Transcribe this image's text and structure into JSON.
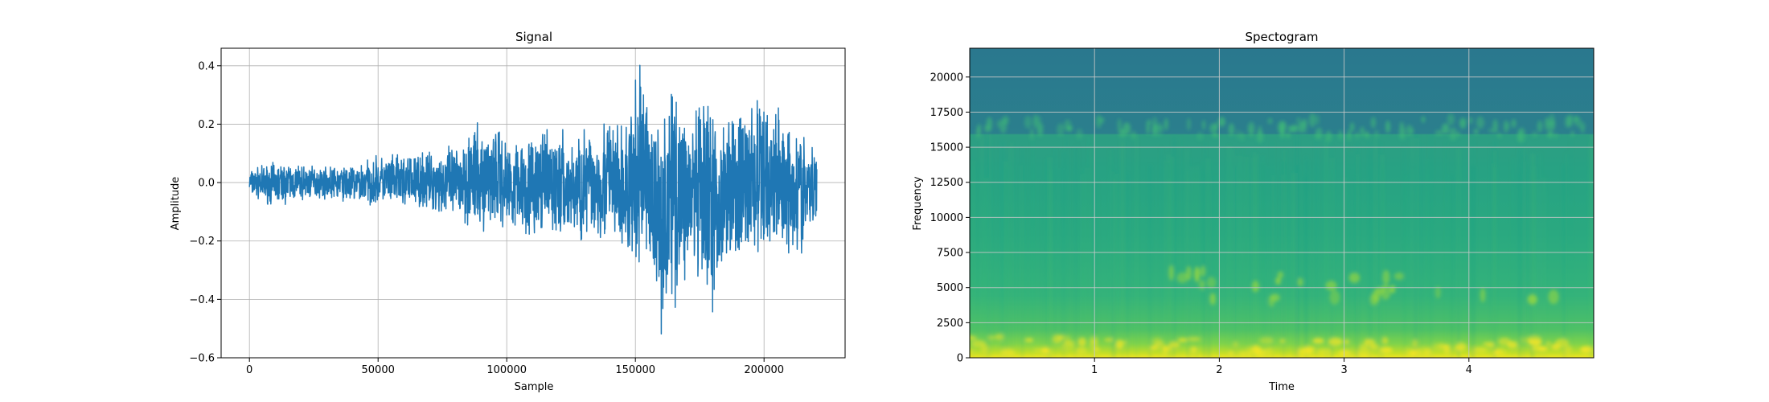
{
  "chart_data": [
    {
      "type": "line",
      "title": "Signal",
      "xlabel": "Sample",
      "ylabel": "Amplitude",
      "xlim": [
        -11000,
        231500
      ],
      "ylim": [
        -0.6,
        0.46
      ],
      "grid": true,
      "x_ticks": [
        0,
        50000,
        100000,
        150000,
        200000
      ],
      "x_tick_labels": [
        "0",
        "50000",
        "100000",
        "150000",
        "200000"
      ],
      "y_ticks": [
        -0.6,
        -0.4,
        -0.2,
        0.0,
        0.2,
        0.4
      ],
      "y_tick_labels": [
        "−0.6",
        "−0.4",
        "−0.2",
        "0.0",
        "0.2",
        "0.4"
      ],
      "color": "#1f77b4",
      "series": [
        {
          "x_range": [
            0,
            220500
          ],
          "envelope": {
            "x": [
              0,
              10000,
              20000,
              30000,
              40000,
              50000,
              60000,
              70000,
              80000,
              85000,
              90000,
              95000,
              100000,
              105000,
              110000,
              115000,
              120000,
              125000,
              130000,
              135000,
              140000,
              145000,
              148000,
              150000,
              152000,
              155000,
              158000,
              160000,
              163000,
              165000,
              170000,
              175000,
              180000,
              183000,
              185000,
              190000,
              195000,
              200000,
              205000,
              210000,
              215000,
              220500
            ],
            "upper": [
              0.05,
              0.08,
              0.07,
              0.06,
              0.07,
              0.1,
              0.11,
              0.12,
              0.14,
              0.23,
              0.2,
              0.24,
              0.17,
              0.19,
              0.19,
              0.19,
              0.21,
              0.16,
              0.23,
              0.21,
              0.28,
              0.22,
              0.3,
              0.36,
              0.42,
              0.38,
              0.26,
              0.35,
              0.34,
              0.4,
              0.3,
              0.3,
              0.35,
              0.2,
              0.28,
              0.3,
              0.33,
              0.33,
              0.31,
              0.23,
              0.21,
              0.12
            ],
            "lower": [
              -0.05,
              -0.09,
              -0.07,
              -0.06,
              -0.08,
              -0.09,
              -0.1,
              -0.11,
              -0.15,
              -0.18,
              -0.2,
              -0.17,
              -0.18,
              -0.19,
              -0.21,
              -0.19,
              -0.23,
              -0.21,
              -0.25,
              -0.22,
              -0.26,
              -0.3,
              -0.33,
              -0.41,
              -0.31,
              -0.3,
              -0.5,
              -0.55,
              -0.49,
              -0.44,
              -0.38,
              -0.42,
              -0.54,
              -0.37,
              -0.25,
              -0.34,
              -0.31,
              -0.32,
              -0.27,
              -0.26,
              -0.28,
              -0.17
            ]
          }
        }
      ]
    },
    {
      "type": "heatmap",
      "title": "Spectogram",
      "xlabel": "Time",
      "ylabel": "Frequency",
      "xlim": [
        0,
        5
      ],
      "ylim": [
        0,
        22050
      ],
      "grid": true,
      "x_ticks": [
        1,
        2,
        3,
        4
      ],
      "x_tick_labels": [
        "1",
        "2",
        "3",
        "4"
      ],
      "y_ticks": [
        0,
        2500,
        5000,
        7500,
        10000,
        12500,
        15000,
        17500,
        20000
      ],
      "y_tick_labels": [
        "0",
        "2500",
        "5000",
        "7500",
        "10000",
        "12500",
        "15000",
        "17500",
        "20000"
      ],
      "colormap": [
        "#2a788e",
        "#21918c",
        "#22a884",
        "#44bf70",
        "#7ad151",
        "#bddf26",
        "#fde725"
      ],
      "cutoff_frequency": 16000
    }
  ]
}
